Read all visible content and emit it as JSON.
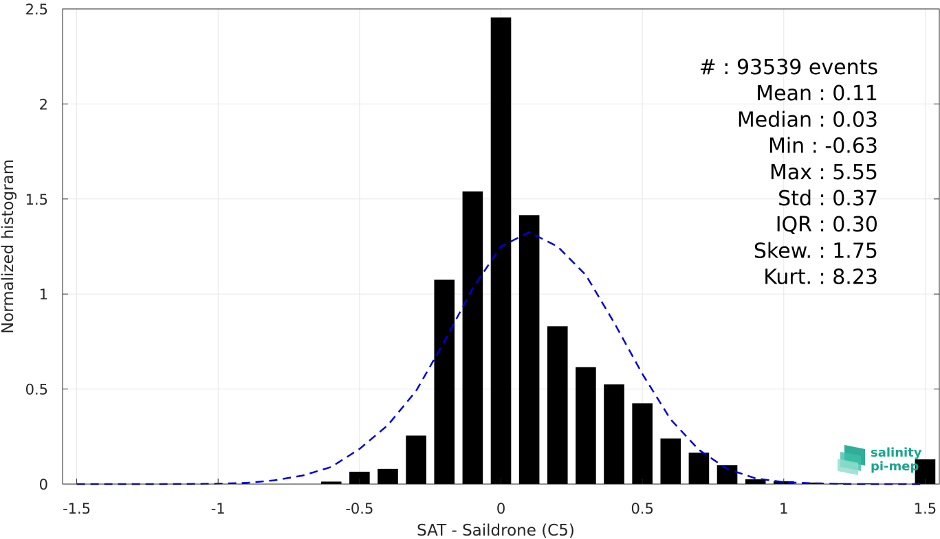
{
  "chart_data": {
    "type": "bar",
    "xlabel": "SAT - Saildrone (C5)",
    "ylabel": "Normalized histogram",
    "xlim": [
      -1.55,
      1.55
    ],
    "ylim": [
      0,
      2.5
    ],
    "xticks": [
      "-1.5",
      "-1",
      "-0.5",
      "0",
      "0.5",
      "1",
      "1.5"
    ],
    "yticks": [
      "0",
      "0.5",
      "1",
      "1.5",
      "2",
      "2.5"
    ],
    "grid": true,
    "bar_color": "#000000",
    "bin_width": 0.1,
    "bins": [
      {
        "x": -0.6,
        "y": 0.013
      },
      {
        "x": -0.5,
        "y": 0.065
      },
      {
        "x": -0.4,
        "y": 0.08
      },
      {
        "x": -0.3,
        "y": 0.255
      },
      {
        "x": -0.2,
        "y": 1.075
      },
      {
        "x": -0.1,
        "y": 1.54
      },
      {
        "x": 0.0,
        "y": 2.455
      },
      {
        "x": 0.1,
        "y": 1.415
      },
      {
        "x": 0.2,
        "y": 0.83
      },
      {
        "x": 0.3,
        "y": 0.615
      },
      {
        "x": 0.4,
        "y": 0.525
      },
      {
        "x": 0.5,
        "y": 0.425
      },
      {
        "x": 0.6,
        "y": 0.24
      },
      {
        "x": 0.7,
        "y": 0.165
      },
      {
        "x": 0.8,
        "y": 0.1
      },
      {
        "x": 0.9,
        "y": 0.025
      },
      {
        "x": 1.0,
        "y": 0.015
      },
      {
        "x": 1.1,
        "y": 0.008
      },
      {
        "x": 1.2,
        "y": 0.005
      },
      {
        "x": 1.3,
        "y": 0.004
      },
      {
        "x": 1.4,
        "y": 0.003
      },
      {
        "x": 1.5,
        "y": 0.13
      }
    ],
    "fit_curve": {
      "style": "dashed",
      "color": "#0000dd",
      "points": [
        [
          -1.5,
          0.0
        ],
        [
          -1.4,
          0.0
        ],
        [
          -1.3,
          0.0
        ],
        [
          -1.2,
          0.0
        ],
        [
          -1.1,
          0.001
        ],
        [
          -1.0,
          0.002
        ],
        [
          -0.9,
          0.006
        ],
        [
          -0.8,
          0.02
        ],
        [
          -0.7,
          0.045
        ],
        [
          -0.6,
          0.09
        ],
        [
          -0.5,
          0.185
        ],
        [
          -0.4,
          0.31
        ],
        [
          -0.3,
          0.49
        ],
        [
          -0.2,
          0.75
        ],
        [
          -0.1,
          1.03
        ],
        [
          0.0,
          1.25
        ],
        [
          0.1,
          1.325
        ],
        [
          0.2,
          1.25
        ],
        [
          0.3,
          1.1
        ],
        [
          0.4,
          0.85
        ],
        [
          0.5,
          0.58
        ],
        [
          0.6,
          0.34
        ],
        [
          0.7,
          0.18
        ],
        [
          0.8,
          0.08
        ],
        [
          0.9,
          0.03
        ],
        [
          1.0,
          0.01
        ],
        [
          1.1,
          0.004
        ],
        [
          1.2,
          0.001
        ],
        [
          1.3,
          0.0
        ],
        [
          1.4,
          0.0
        ],
        [
          1.5,
          0.0
        ]
      ]
    }
  },
  "stats": [
    "#  : 93539 events",
    "Mean : 0.11",
    "Median : 0.03",
    "Min : -0.63",
    "Max : 5.55",
    "Std : 0.37",
    "IQR : 0.30",
    "Skew. : 1.75",
    "Kurt. : 8.23"
  ],
  "logo": {
    "line1": "salinity",
    "line2": "pi-mep",
    "color": "#1aa58f"
  }
}
